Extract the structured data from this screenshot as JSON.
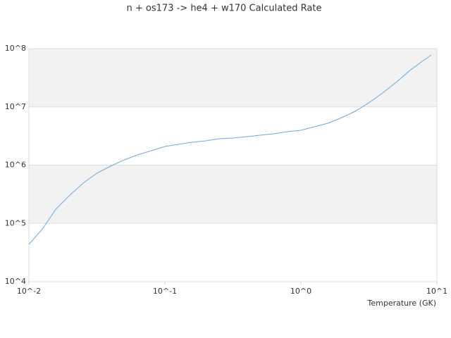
{
  "chart_data": {
    "type": "line",
    "title": "n + os173 -> he4 + w170 Calculated Rate",
    "x_label": "Temperature (GK)",
    "x": [
      0.01,
      0.0126,
      0.0158,
      0.02,
      0.0251,
      0.0316,
      0.0398,
      0.0501,
      0.0631,
      0.0794,
      0.1,
      0.126,
      0.158,
      0.2,
      0.251,
      0.316,
      0.398,
      0.501,
      0.631,
      0.794,
      1,
      1.26,
      1.58,
      2,
      2.51,
      3.16,
      3.98,
      5.01,
      6.31,
      7.94,
      9.1
    ],
    "series": [
      {
        "color": "#6fa8dc",
        "values": [
          43600,
          80500,
          175800,
          306000,
          492000,
          726000,
          959000,
          1230000,
          1500000,
          1770000,
          2090000,
          2270000,
          2470000,
          2610000,
          2840000,
          2920000,
          3080000,
          3260000,
          3450000,
          3750000,
          3960000,
          4560000,
          5240000,
          6540000,
          8400000,
          11700000,
          17300000,
          26300000,
          42000000,
          62300000,
          77800000
        ]
      }
    ],
    "xscale": "log",
    "yscale": "log",
    "xlim": [
      0.01,
      10
    ],
    "ylim": [
      10000,
      100000000
    ],
    "xticks": [
      {
        "value": 0.01,
        "label": "10^-2"
      },
      {
        "value": 0.1,
        "label": "10^-1"
      },
      {
        "value": 1,
        "label": "10^0"
      },
      {
        "value": 10,
        "label": "10^1"
      }
    ],
    "yticks": [
      {
        "value": 10000,
        "label": "10^4"
      },
      {
        "value": 100000,
        "label": "10^5"
      },
      {
        "value": 1000000,
        "label": "10^6"
      },
      {
        "value": 10000000,
        "label": "10^7"
      },
      {
        "value": 100000000,
        "label": "10^8"
      }
    ],
    "grid": true
  }
}
